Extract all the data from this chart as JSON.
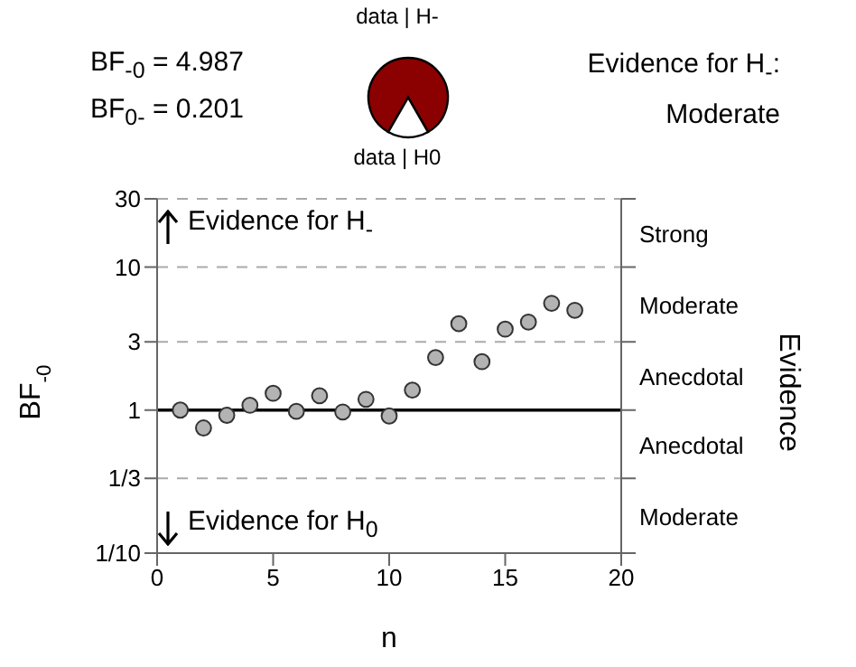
{
  "chart_data": [
    {
      "type": "pie",
      "categories": [
        "data | H-",
        "data | H0"
      ],
      "values": [
        83.3,
        16.7
      ],
      "colors": [
        "#8b0000",
        "#ffffff"
      ],
      "annotations": [
        "BF$_{-0}$ = 4.987",
        "BF$_{0-}$ = 0.201",
        "Evidence for H$_{-}$:",
        "Moderate"
      ]
    },
    {
      "type": "scatter",
      "xlabel": "n",
      "ylabel": "BF$_{-0}$",
      "y2label": "Evidence",
      "x": [
        1,
        2,
        3,
        4,
        5,
        6,
        7,
        8,
        9,
        10,
        11,
        12,
        13,
        14,
        15,
        16,
        17,
        18
      ],
      "series": [
        {
          "color": "#b3b3b3",
          "values": [
            1.0,
            0.75,
            0.92,
            1.08,
            1.31,
            0.98,
            1.26,
            0.97,
            1.19,
            0.91,
            1.38,
            2.33,
            4.02,
            2.18,
            3.68,
            4.13,
            5.58,
            4.987
          ]
        }
      ],
      "xlim": [
        0,
        20
      ],
      "xticks": [
        0,
        5,
        10,
        15,
        20
      ],
      "ylim": [
        0.1,
        30
      ],
      "yticks": [
        {
          "value": 0.1,
          "label": "1/10"
        },
        {
          "value": 0.3333,
          "label": "1/3"
        },
        1,
        3,
        10,
        30
      ],
      "log": "y",
      "grid": "y",
      "marker": "circle",
      "ref_lines": [
        {
          "axis": "y",
          "value": 1,
          "color": "#000000",
          "line_style": "solid"
        }
      ],
      "annotations": [
        "Evidence for H$_{-}$",
        "Evidence for H$_{0}$",
        "Strong",
        "Moderate",
        "Anecdotal",
        "Anecdotal",
        "Moderate"
      ]
    }
  ]
}
